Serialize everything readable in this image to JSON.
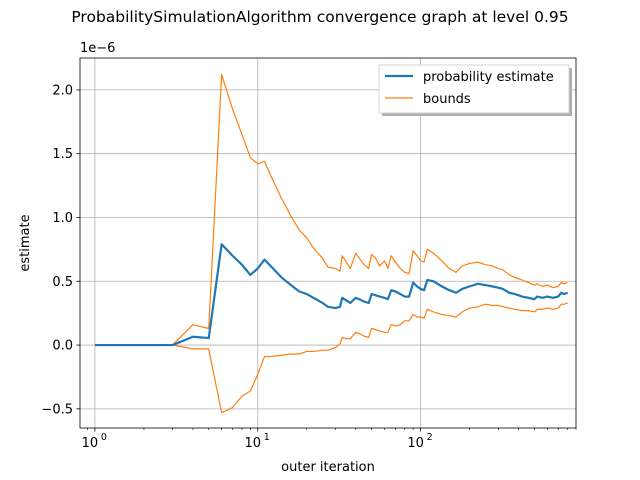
{
  "chart_data": {
    "type": "line",
    "title": "ProbabilitySimulationAlgorithm convergence graph at level 0.95",
    "xlabel": "outer iteration",
    "ylabel": "estimate",
    "x_scale": "log",
    "xlim": [
      0.81,
      900
    ],
    "ylim": [
      -6.5e-07,
      2.25e-06
    ],
    "y_offset_label": "1e−6",
    "x_ticks": [
      {
        "value": 1,
        "base": "10",
        "exp": "0"
      },
      {
        "value": 10,
        "base": "10",
        "exp": "1"
      },
      {
        "value": 100,
        "base": "10",
        "exp": "2"
      }
    ],
    "y_ticks": [
      {
        "value": -5e-07,
        "label": "−0.5"
      },
      {
        "value": 0.0,
        "label": "0.0"
      },
      {
        "value": 5e-07,
        "label": "0.5"
      },
      {
        "value": 1e-06,
        "label": "1.0"
      },
      {
        "value": 1.5e-06,
        "label": "1.5"
      },
      {
        "value": 2e-06,
        "label": "2.0"
      }
    ],
    "grid": true,
    "legend_position": "top-right",
    "series": [
      {
        "name": "probability estimate",
        "color": "#1f77b4",
        "width": 2.2,
        "points": [
          [
            1,
            0
          ],
          [
            2,
            0
          ],
          [
            3,
            0
          ],
          [
            4,
            6.5e-08
          ],
          [
            5,
            5.5e-08
          ],
          [
            6,
            7.9e-07
          ],
          [
            7,
            7e-07
          ],
          [
            8,
            6.3e-07
          ],
          [
            9,
            5.5e-07
          ],
          [
            10,
            6e-07
          ],
          [
            11,
            6.7e-07
          ],
          [
            12,
            6.2e-07
          ],
          [
            14,
            5.3e-07
          ],
          [
            16,
            4.7e-07
          ],
          [
            18,
            4.2e-07
          ],
          [
            20,
            4e-07
          ],
          [
            22,
            3.7e-07
          ],
          [
            25,
            3.3e-07
          ],
          [
            27,
            3e-07
          ],
          [
            30,
            2.9e-07
          ],
          [
            32,
            3e-07
          ],
          [
            33,
            3.7e-07
          ],
          [
            35,
            3.5e-07
          ],
          [
            37,
            3.3e-07
          ],
          [
            40,
            3.7e-07
          ],
          [
            42,
            3.6e-07
          ],
          [
            45,
            3.4e-07
          ],
          [
            48,
            3.3e-07
          ],
          [
            50,
            4e-07
          ],
          [
            53,
            3.9e-07
          ],
          [
            56,
            3.8e-07
          ],
          [
            60,
            3.7e-07
          ],
          [
            63,
            3.6e-07
          ],
          [
            66,
            4.3e-07
          ],
          [
            70,
            4.2e-07
          ],
          [
            75,
            4e-07
          ],
          [
            80,
            3.8e-07
          ],
          [
            85,
            3.8e-07
          ],
          [
            90,
            4.9e-07
          ],
          [
            95,
            4.6e-07
          ],
          [
            100,
            4.4e-07
          ],
          [
            105,
            4.3e-07
          ],
          [
            110,
            5.1e-07
          ],
          [
            120,
            5e-07
          ],
          [
            135,
            4.6e-07
          ],
          [
            150,
            4.3e-07
          ],
          [
            165,
            4.1e-07
          ],
          [
            180,
            4.4e-07
          ],
          [
            200,
            4.6e-07
          ],
          [
            225,
            4.8e-07
          ],
          [
            250,
            4.7e-07
          ],
          [
            275,
            4.6e-07
          ],
          [
            300,
            4.5e-07
          ],
          [
            320,
            4.4e-07
          ],
          [
            350,
            4.1e-07
          ],
          [
            380,
            4e-07
          ],
          [
            420,
            3.8e-07
          ],
          [
            460,
            3.7e-07
          ],
          [
            500,
            3.6e-07
          ],
          [
            520,
            3.8e-07
          ],
          [
            560,
            3.7e-07
          ],
          [
            600,
            3.8e-07
          ],
          [
            650,
            3.7e-07
          ],
          [
            700,
            3.8e-07
          ],
          [
            730,
            4.1e-07
          ],
          [
            760,
            4e-07
          ],
          [
            800,
            4.1e-07
          ]
        ]
      },
      {
        "name": "bounds",
        "color": "#ff7f0e",
        "width": 1.2,
        "points": [
          [
            1,
            0
          ],
          [
            2,
            0
          ],
          [
            3,
            0
          ],
          [
            4,
            1.6e-07
          ],
          [
            5,
            1.3e-07
          ],
          [
            6,
            2.12e-06
          ],
          [
            7,
            1.85e-06
          ],
          [
            8,
            1.65e-06
          ],
          [
            9,
            1.47e-06
          ],
          [
            10,
            1.42e-06
          ],
          [
            11,
            1.44e-06
          ],
          [
            12,
            1.33e-06
          ],
          [
            14,
            1.15e-06
          ],
          [
            16,
            1.01e-06
          ],
          [
            18,
            9e-07
          ],
          [
            20,
            8.4e-07
          ],
          [
            22,
            7.6e-07
          ],
          [
            25,
            6.8e-07
          ],
          [
            27,
            6.1e-07
          ],
          [
            30,
            6e-07
          ],
          [
            32,
            5.8e-07
          ],
          [
            33,
            7e-07
          ],
          [
            35,
            6.5e-07
          ],
          [
            37,
            6e-07
          ],
          [
            40,
            7.2e-07
          ],
          [
            42,
            6.8e-07
          ],
          [
            45,
            6.3e-07
          ],
          [
            48,
            6e-07
          ],
          [
            50,
            7.1e-07
          ],
          [
            53,
            6.8e-07
          ],
          [
            56,
            6.2e-07
          ],
          [
            60,
            6.6e-07
          ],
          [
            63,
            6e-07
          ],
          [
            66,
            7e-07
          ],
          [
            70,
            6.5e-07
          ],
          [
            75,
            6e-07
          ],
          [
            80,
            5.7e-07
          ],
          [
            85,
            5.6e-07
          ],
          [
            90,
            7.4e-07
          ],
          [
            95,
            7e-07
          ],
          [
            100,
            6.6e-07
          ],
          [
            105,
            6.5e-07
          ],
          [
            110,
            7.5e-07
          ],
          [
            120,
            7.2e-07
          ],
          [
            135,
            6.6e-07
          ],
          [
            150,
            6e-07
          ],
          [
            165,
            5.7e-07
          ],
          [
            180,
            6.2e-07
          ],
          [
            200,
            6.4e-07
          ],
          [
            225,
            6.5e-07
          ],
          [
            250,
            6.3e-07
          ],
          [
            275,
            6.2e-07
          ],
          [
            300,
            6e-07
          ],
          [
            320,
            5.9e-07
          ],
          [
            350,
            5.5e-07
          ],
          [
            380,
            5.3e-07
          ],
          [
            420,
            5.1e-07
          ],
          [
            460,
            4.9e-07
          ],
          [
            500,
            4.7e-07
          ],
          [
            520,
            4.8e-07
          ],
          [
            560,
            4.6e-07
          ],
          [
            600,
            4.7e-07
          ],
          [
            650,
            4.5e-07
          ],
          [
            700,
            4.6e-07
          ],
          [
            730,
            4.9e-07
          ],
          [
            760,
            4.8e-07
          ],
          [
            800,
            4.9e-07
          ]
        ],
        "lower_points": [
          [
            1,
            0
          ],
          [
            2,
            0
          ],
          [
            3,
            0
          ],
          [
            4,
            -3e-08
          ],
          [
            5,
            -3e-08
          ],
          [
            6,
            -5.3e-07
          ],
          [
            7,
            -4.9e-07
          ],
          [
            8,
            -4e-07
          ],
          [
            9,
            -3.6e-07
          ],
          [
            10,
            -2.3e-07
          ],
          [
            11,
            -9e-08
          ],
          [
            12,
            -9e-08
          ],
          [
            14,
            -8e-08
          ],
          [
            16,
            -7e-08
          ],
          [
            18,
            -7e-08
          ],
          [
            20,
            -5e-08
          ],
          [
            22,
            -5e-08
          ],
          [
            25,
            -4e-08
          ],
          [
            27,
            -4e-08
          ],
          [
            30,
            -2e-08
          ],
          [
            32,
            1e-08
          ],
          [
            33,
            6e-08
          ],
          [
            35,
            5e-08
          ],
          [
            37,
            5e-08
          ],
          [
            40,
            1e-07
          ],
          [
            42,
            9e-08
          ],
          [
            45,
            7e-08
          ],
          [
            48,
            6e-08
          ],
          [
            50,
            1.3e-07
          ],
          [
            53,
            1.2e-07
          ],
          [
            56,
            1.1e-07
          ],
          [
            60,
            1e-07
          ],
          [
            63,
            1e-07
          ],
          [
            66,
            1.6e-07
          ],
          [
            70,
            1.5e-07
          ],
          [
            75,
            1.6e-07
          ],
          [
            80,
            1.9e-07
          ],
          [
            85,
            1.9e-07
          ],
          [
            90,
            2.4e-07
          ],
          [
            95,
            2.2e-07
          ],
          [
            100,
            2.2e-07
          ],
          [
            105,
            2.1e-07
          ],
          [
            110,
            2.8e-07
          ],
          [
            120,
            2.6e-07
          ],
          [
            135,
            2.4e-07
          ],
          [
            150,
            2.3e-07
          ],
          [
            165,
            2.2e-07
          ],
          [
            180,
            2.6e-07
          ],
          [
            200,
            2.9e-07
          ],
          [
            225,
            3e-07
          ],
          [
            250,
            3.2e-07
          ],
          [
            275,
            3.1e-07
          ],
          [
            300,
            3.1e-07
          ],
          [
            320,
            3e-07
          ],
          [
            350,
            2.9e-07
          ],
          [
            380,
            2.8e-07
          ],
          [
            420,
            2.7e-07
          ],
          [
            460,
            2.7e-07
          ],
          [
            500,
            2.6e-07
          ],
          [
            520,
            2.8e-07
          ],
          [
            560,
            2.8e-07
          ],
          [
            600,
            2.9e-07
          ],
          [
            650,
            2.8e-07
          ],
          [
            700,
            2.9e-07
          ],
          [
            730,
            3.2e-07
          ],
          [
            760,
            3.2e-07
          ],
          [
            800,
            3.3e-07
          ]
        ]
      }
    ]
  }
}
